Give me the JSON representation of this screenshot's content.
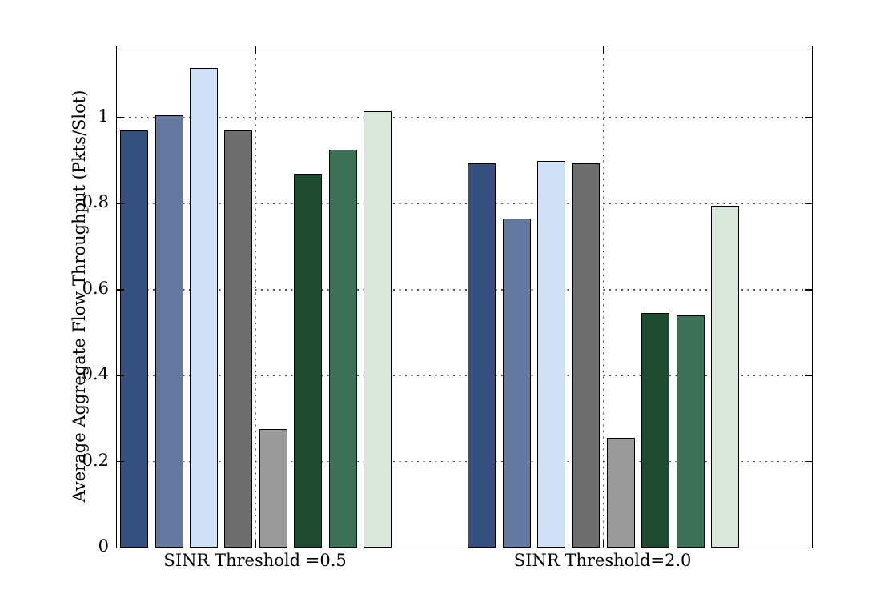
{
  "figure": {
    "background_color": "#ffffff",
    "axis_color": "#000000",
    "grid_dot_color": "#4d4d4d"
  },
  "chart_data": {
    "type": "bar",
    "title": "",
    "xlabel": "",
    "ylabel": "Average Aggregate Flow Throughput (Pkts/Slot)",
    "categories": [
      "SINR Threshold =0.5",
      "SINR Threshold=2.0"
    ],
    "series": [
      {
        "name": "dark-blue",
        "color": "#35507e",
        "values": [
          0.97,
          0.895
        ]
      },
      {
        "name": "medium-blue",
        "color": "#6579a0",
        "values": [
          1.005,
          0.765
        ]
      },
      {
        "name": "light-blue",
        "color": "#cfe0f4",
        "values": [
          1.115,
          0.9
        ]
      },
      {
        "name": "dark-gray",
        "color": "#6e6e6e",
        "values": [
          0.97,
          0.895
        ]
      },
      {
        "name": "light-gray",
        "color": "#9a9a9a",
        "values": [
          0.275,
          0.255
        ]
      },
      {
        "name": "dark-green",
        "color": "#1d4a31",
        "values": [
          0.87,
          0.545
        ]
      },
      {
        "name": "medium-green",
        "color": "#3c7157",
        "values": [
          0.925,
          0.54
        ]
      },
      {
        "name": "light-green",
        "color": "#d8e6dc",
        "values": [
          1.015,
          0.795
        ]
      }
    ],
    "y_ticks": [
      0,
      0.2,
      0.4,
      0.6,
      0.8,
      1
    ],
    "y_tick_labels": [
      "0",
      "0.2",
      "0.4",
      "0.6",
      "0.8",
      "1"
    ],
    "ylim": [
      0,
      1.166
    ],
    "grid": true,
    "legend_position": "none"
  }
}
